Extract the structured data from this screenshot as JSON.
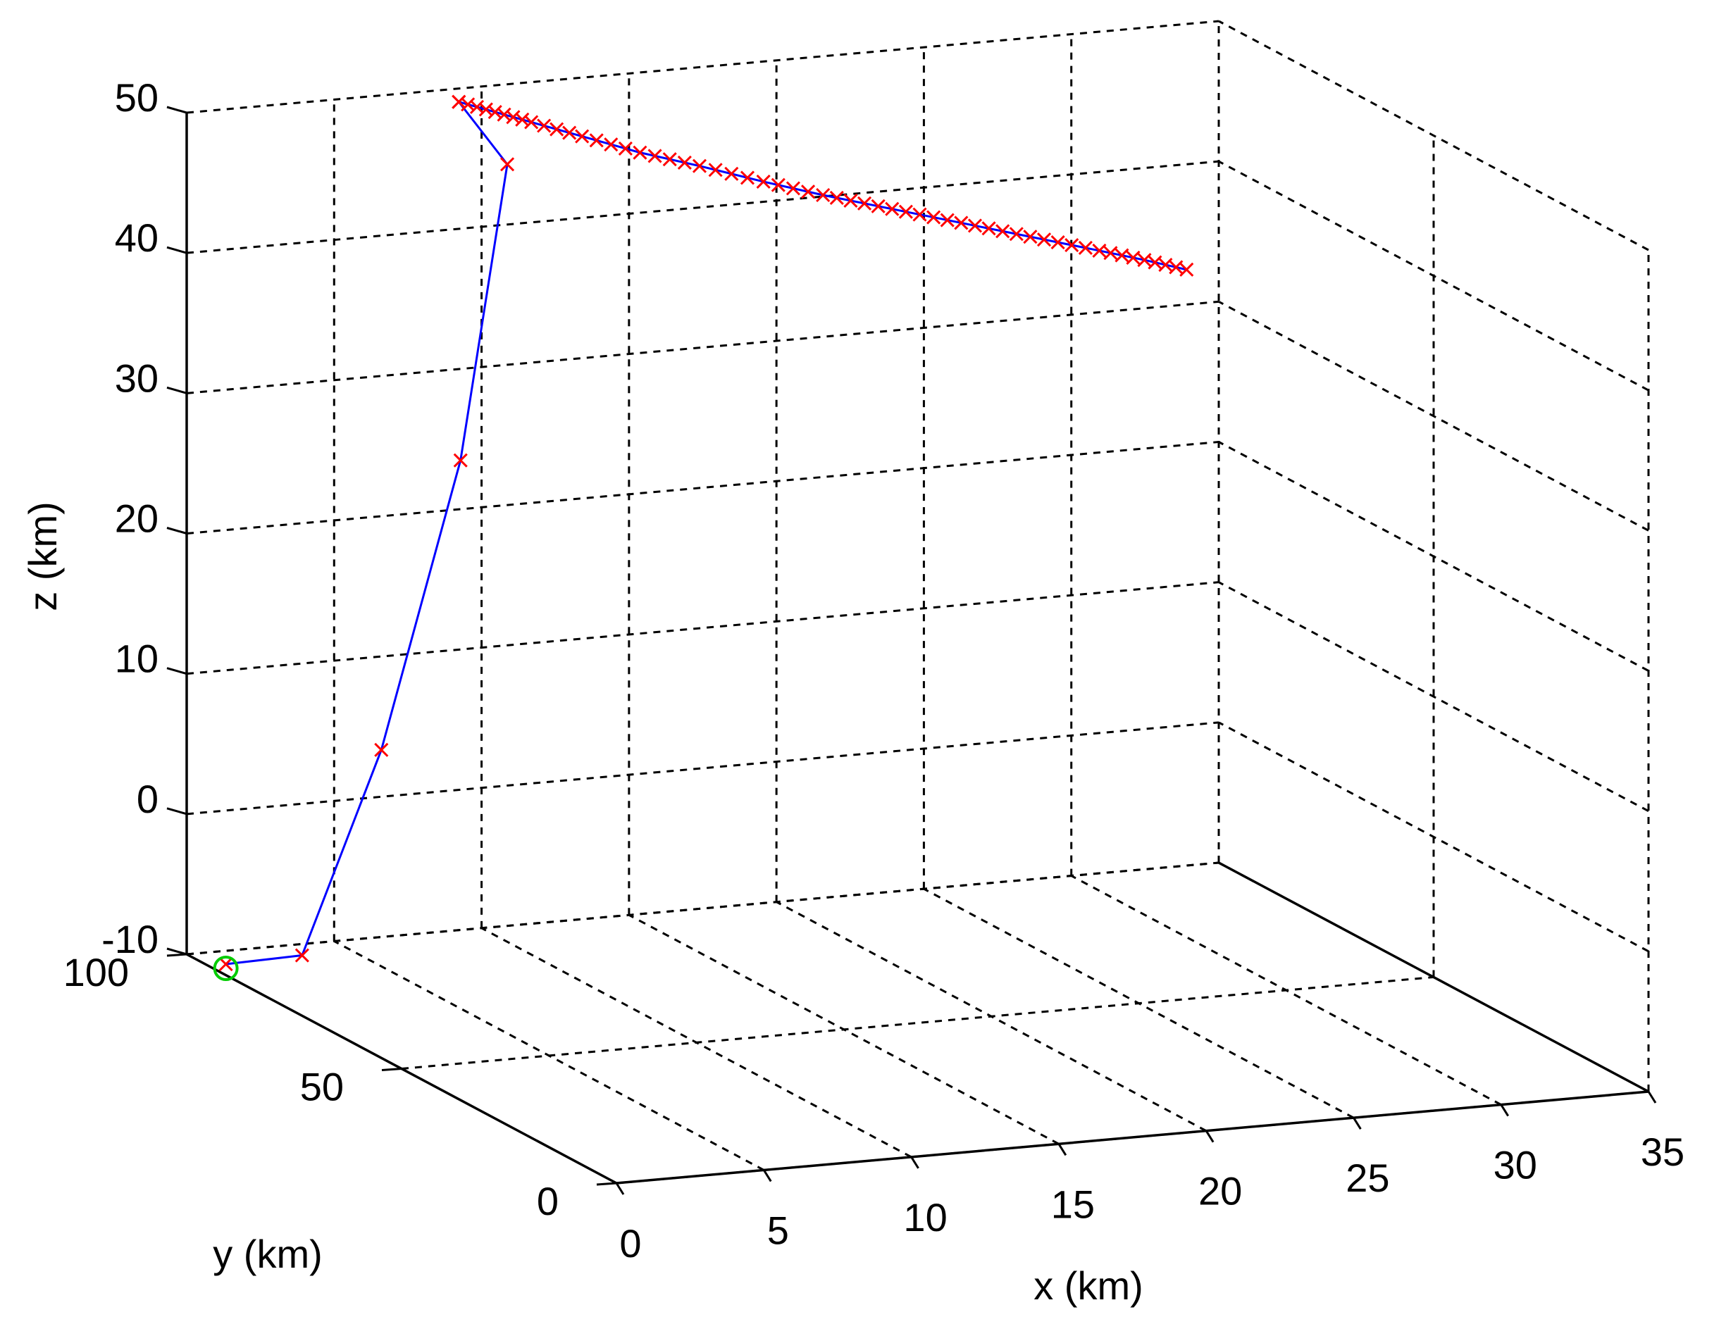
{
  "chart_data": {
    "type": "line3d",
    "title": "",
    "xlabel": "x (km)",
    "ylabel": "y (km)",
    "zlabel": "z (km)",
    "xlim": [
      0,
      35
    ],
    "ylim": [
      0,
      100
    ],
    "zlim": [
      -10,
      50
    ],
    "x_ticks": [
      "0",
      "5",
      "10",
      "15",
      "20",
      "25",
      "30",
      "35"
    ],
    "y_ticks": [
      "0",
      "50",
      "100"
    ],
    "z_ticks": [
      "-10",
      "0",
      "10",
      "20",
      "30",
      "40",
      "50"
    ],
    "grid": true,
    "line_color": "#0000ff",
    "marker_color": "#ff0000",
    "start_marker_color": "#00cc00",
    "trajectory": {
      "x": [
        0.6,
        1.0,
        1.5,
        2.0,
        6.5,
        8.5
      ],
      "y": [
        95,
        80,
        65,
        50,
        70,
        95
      ],
      "z": [
        -10,
        -7,
        10,
        33,
        50,
        50
      ]
    },
    "cluster": {
      "x": [
        8.5,
        9.0,
        9.5,
        10.2,
        11.0,
        12.0,
        13.0,
        14.0,
        15.0,
        16.0,
        17.0,
        18.0,
        19.0,
        19.8,
        20.5
      ],
      "y": [
        95,
        90,
        85,
        78,
        70,
        63,
        55,
        48,
        42,
        36,
        30,
        24,
        18,
        13,
        8
      ],
      "z": [
        50,
        50,
        50,
        50,
        50,
        50,
        50,
        50,
        50,
        50,
        50,
        50,
        50,
        50,
        50
      ]
    },
    "start_point": {
      "x": 0.6,
      "y": 95,
      "z": -10
    }
  }
}
